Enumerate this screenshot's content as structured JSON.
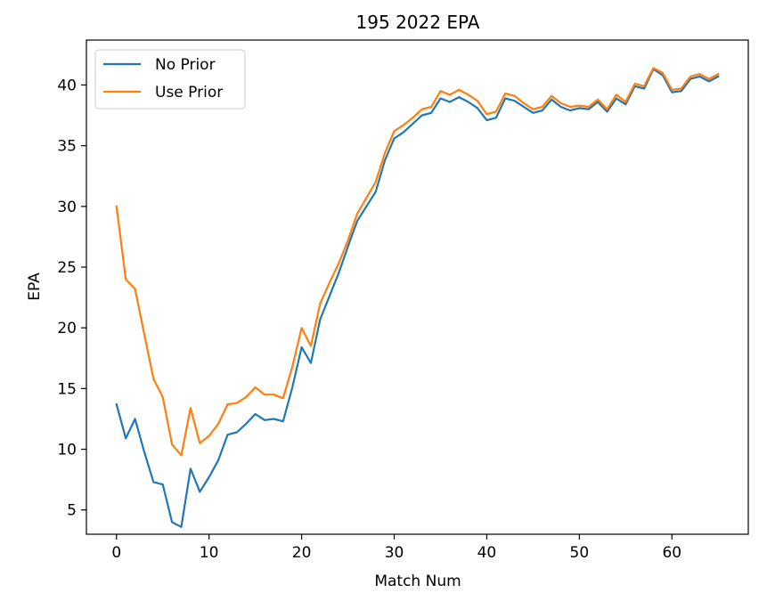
{
  "chart_data": {
    "type": "line",
    "title": "195 2022 EPA",
    "xlabel": "Match Num",
    "ylabel": "EPA",
    "xlim": [
      -3.25,
      68.25
    ],
    "ylim": [
      3.0,
      43.7
    ],
    "xticks": [
      0,
      10,
      20,
      30,
      40,
      50,
      60
    ],
    "yticks": [
      5,
      10,
      15,
      20,
      25,
      30,
      35,
      40
    ],
    "grid": false,
    "legend_position": "top-left",
    "series": [
      {
        "name": "No Prior",
        "color": "#1f77b4",
        "x": [
          0,
          1,
          2,
          3,
          4,
          5,
          6,
          7,
          8,
          9,
          10,
          11,
          12,
          13,
          14,
          15,
          16,
          17,
          18,
          19,
          20,
          21,
          22,
          23,
          24,
          25,
          26,
          27,
          28,
          29,
          30,
          31,
          32,
          33,
          34,
          35,
          36,
          37,
          38,
          39,
          40,
          41,
          42,
          43,
          44,
          45,
          46,
          47,
          48,
          49,
          50,
          51,
          52,
          53,
          54,
          55,
          56,
          57,
          58,
          59,
          60,
          61,
          62,
          63,
          64,
          65
        ],
        "values": [
          13.7,
          10.9,
          12.5,
          9.8,
          7.3,
          7.1,
          4.0,
          3.6,
          8.4,
          6.5,
          7.7,
          9.1,
          11.2,
          11.4,
          12.1,
          12.9,
          12.4,
          12.5,
          12.3,
          15.1,
          18.4,
          17.1,
          20.7,
          22.6,
          24.5,
          26.7,
          28.8,
          30.0,
          31.2,
          33.8,
          35.6,
          36.1,
          36.8,
          37.5,
          37.7,
          38.9,
          38.6,
          39.0,
          38.6,
          38.1,
          37.1,
          37.3,
          38.9,
          38.7,
          38.2,
          37.7,
          37.9,
          38.8,
          38.2,
          37.9,
          38.1,
          38.0,
          38.6,
          37.8,
          38.9,
          38.4,
          39.9,
          39.7,
          41.3,
          40.8,
          39.4,
          39.5,
          40.5,
          40.7,
          40.3,
          40.7
        ]
      },
      {
        "name": "Use Prior",
        "color": "#ff7f0e",
        "x": [
          0,
          1,
          2,
          3,
          4,
          5,
          6,
          7,
          8,
          9,
          10,
          11,
          12,
          13,
          14,
          15,
          16,
          17,
          18,
          19,
          20,
          21,
          22,
          23,
          24,
          25,
          26,
          27,
          28,
          29,
          30,
          31,
          32,
          33,
          34,
          35,
          36,
          37,
          38,
          39,
          40,
          41,
          42,
          43,
          44,
          45,
          46,
          47,
          48,
          49,
          50,
          51,
          52,
          53,
          54,
          55,
          56,
          57,
          58,
          59,
          60,
          61,
          62,
          63,
          64,
          65
        ],
        "values": [
          30.0,
          24.0,
          23.2,
          19.5,
          15.8,
          14.3,
          10.4,
          9.5,
          13.4,
          10.5,
          11.1,
          12.1,
          13.7,
          13.8,
          14.3,
          15.1,
          14.5,
          14.5,
          14.2,
          16.8,
          20.0,
          18.5,
          22.0,
          23.7,
          25.3,
          27.2,
          29.4,
          30.7,
          32.0,
          34.4,
          36.2,
          36.7,
          37.3,
          38.0,
          38.2,
          39.5,
          39.2,
          39.6,
          39.2,
          38.7,
          37.6,
          37.8,
          39.3,
          39.1,
          38.5,
          38.0,
          38.2,
          39.1,
          38.5,
          38.2,
          38.3,
          38.2,
          38.8,
          38.0,
          39.2,
          38.6,
          40.1,
          39.9,
          41.4,
          41.0,
          39.6,
          39.7,
          40.7,
          40.9,
          40.5,
          40.9
        ]
      }
    ]
  }
}
